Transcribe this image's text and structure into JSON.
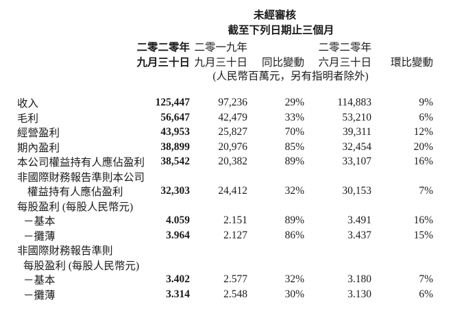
{
  "table": {
    "title_line1": "未經審核",
    "title_line2": "截至下列日期止三個月",
    "unit_note": "(人民幣百萬元，另有指明者除外)",
    "columns": [
      {
        "key": "sep2020",
        "year": "二零二零年",
        "date": "九月三十日",
        "emphasis": true
      },
      {
        "key": "sep2019",
        "year": "二零一九年",
        "date": "九月三十日",
        "emphasis": false
      },
      {
        "key": "yoy",
        "year": "",
        "date": "同比變動",
        "emphasis": false
      },
      {
        "key": "jun2020",
        "year": "二零二零年",
        "date": "六月三十日",
        "emphasis": false
      },
      {
        "key": "qoq",
        "year": "",
        "date": "環比變動",
        "emphasis": false
      }
    ],
    "rows": [
      {
        "label": "收入",
        "indent": 0,
        "values": [
          "125,447",
          "97,236",
          "29%",
          "114,883",
          "9%"
        ]
      },
      {
        "label": "毛利",
        "indent": 0,
        "values": [
          "56,647",
          "42,479",
          "33%",
          "53,210",
          "6%"
        ]
      },
      {
        "label": "經營盈利",
        "indent": 0,
        "values": [
          "43,953",
          "25,827",
          "70%",
          "39,311",
          "12%"
        ]
      },
      {
        "label": "期內盈利",
        "indent": 0,
        "values": [
          "38,899",
          "20,976",
          "85%",
          "32,454",
          "20%"
        ]
      },
      {
        "label": "本公司權益持有人應佔盈利",
        "indent": 0,
        "values": [
          "38,542",
          "20,382",
          "89%",
          "33,107",
          "16%"
        ]
      },
      {
        "label": "非國際財務報告準則本公司",
        "indent": 0,
        "values": []
      },
      {
        "label": "權益持有人應佔盈利",
        "indent": 2,
        "values": [
          "32,303",
          "24,412",
          "32%",
          "30,153",
          "7%"
        ]
      },
      {
        "label": "每股盈利 (每股人民幣元)",
        "indent": 0,
        "values": []
      },
      {
        "label": "－基本",
        "indent": 1,
        "values": [
          "4.059",
          "2.151",
          "89%",
          "3.491",
          "16%"
        ]
      },
      {
        "label": "－攤薄",
        "indent": 1,
        "values": [
          "3.964",
          "2.127",
          "86%",
          "3.437",
          "15%"
        ]
      },
      {
        "label": "非國際財務報告準則",
        "indent": 0,
        "values": []
      },
      {
        "label": "每股盈利 (每股人民幣元)",
        "indent": 1,
        "values": []
      },
      {
        "label": "－基本",
        "indent": 1,
        "values": [
          "3.402",
          "2.577",
          "32%",
          "3.180",
          "7%"
        ]
      },
      {
        "label": "－攤薄",
        "indent": 1,
        "values": [
          "3.314",
          "2.548",
          "30%",
          "3.130",
          "6%"
        ]
      }
    ]
  }
}
